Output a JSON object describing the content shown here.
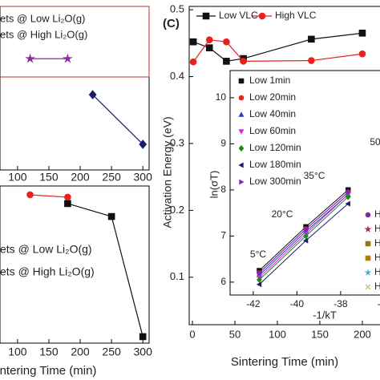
{
  "chart_data": [
    {
      "type": "line",
      "xlim": [
        72,
        310
      ],
      "xticks": [
        100,
        150,
        200,
        250,
        300
      ],
      "ylim": [
        0,
        1
      ],
      "legend_color": "#8b1a1a",
      "series": [
        {
          "name": "ets @  Low Li₂O(g)",
          "color": "#1c1c6e",
          "marker": "diamond",
          "x": [
            220,
            300
          ],
          "values": [
            0.46,
            0.157
          ]
        },
        {
          "name": "ets @  High Li₂O(g)",
          "color": "#8e2a9e",
          "marker": "star",
          "x": [
            120,
            180
          ],
          "values": [
            0.68,
            0.68
          ]
        }
      ]
    },
    {
      "type": "line",
      "xlim": [
        72,
        310
      ],
      "xticks": [
        100,
        150,
        200,
        250,
        300
      ],
      "ylim": [
        0,
        1
      ],
      "x_label": "ntering Time (min)",
      "legend_color": "#222222",
      "series": [
        {
          "name": "ets @  Low Li₂O(g)",
          "color": "#111111",
          "marker": "square",
          "x": [
            180,
            250,
            300
          ],
          "values": [
            0.888,
            0.806,
            0.041
          ]
        },
        {
          "name": "ets @  High Li₂O(g)",
          "color": "#e8201e",
          "marker": "circle",
          "x": [
            120,
            180
          ],
          "values": [
            0.944,
            0.929
          ]
        }
      ]
    },
    {
      "type": "line",
      "panel_label": "(C)",
      "x_label": "Sintering Time (min)",
      "y_label": "Activation Energy (eV)",
      "xlim": [
        -3.8,
        220.8
      ],
      "xticks": [
        0,
        50,
        100,
        150,
        200
      ],
      "ylim": [
        0.029,
        0.505
      ],
      "yticks": [
        0.1,
        0.2,
        0.3,
        0.4,
        0.5
      ],
      "legend_color": "#222222",
      "series": [
        {
          "name": "Low VLC",
          "color": "#111111",
          "marker": "square",
          "x": [
            1,
            20,
            40,
            60,
            140,
            200
          ],
          "values": [
            0.452,
            0.443,
            0.423,
            0.427,
            0.456,
            0.465
          ]
        },
        {
          "name": "High VLC",
          "color": "#e8201e",
          "marker": "circle",
          "x": [
            1,
            20,
            40,
            60,
            140,
            200
          ],
          "values": [
            0.422,
            0.455,
            0.452,
            0.423,
            0.424,
            0.434
          ]
        }
      ]
    },
    {
      "type": "line",
      "x_label": "-1/kT",
      "y_label": "ln(σT)",
      "xlim": [
        -43.06,
        -36.2
      ],
      "xticks": [
        -42,
        -40,
        -38,
        -36
      ],
      "ylim": [
        5.72,
        10.59
      ],
      "yticks": [
        6,
        7,
        8,
        9,
        10
      ],
      "legend_color": "#222222",
      "annotations": [
        "5°C",
        "20°C",
        "35°C",
        "50"
      ],
      "series": [
        {
          "name": "Low 1min",
          "color": "#111111",
          "marker": "square",
          "x": [
            -41.72,
            -39.59,
            -37.66
          ],
          "values": [
            6.25,
            7.2,
            8.0
          ]
        },
        {
          "name": "Low 20min",
          "color": "#e8201e",
          "marker": "circle",
          "x": [
            -41.72,
            -39.59,
            -37.66
          ],
          "values": [
            6.2,
            7.15,
            7.95
          ]
        },
        {
          "name": "Low 40min",
          "color": "#1f3fd0",
          "marker": "triangle-up",
          "x": [
            -41.72,
            -39.59,
            -37.66
          ],
          "values": [
            6.15,
            7.1,
            7.9
          ]
        },
        {
          "name": "Low  60min",
          "color": "#e020e0",
          "marker": "triangle-down",
          "x": [
            -41.72,
            -39.59,
            -37.66
          ],
          "values": [
            6.1,
            7.05,
            7.9
          ]
        },
        {
          "name": "Low 120min",
          "color": "#1a8a1a",
          "marker": "diamond",
          "x": [
            -41.72,
            -39.59,
            -37.66
          ],
          "values": [
            6.05,
            7.0,
            7.85
          ]
        },
        {
          "name": "Low 180min",
          "color": "#1c1c6e",
          "marker": "triangle-left",
          "x": [
            -41.72,
            -39.59,
            -37.66
          ],
          "values": [
            5.95,
            6.9,
            7.7
          ]
        },
        {
          "name": "Low 300min",
          "color": "#7b2ac0",
          "marker": "triangle-right",
          "x": [
            -41.72,
            -39.59,
            -37.66
          ],
          "values": [
            6.2,
            7.15,
            7.95
          ]
        }
      ],
      "extra_legend": [
        {
          "label": "H",
          "color": "#7b2a9e",
          "marker": "circle"
        },
        {
          "label": "H",
          "color": "#b02040",
          "marker": "star"
        },
        {
          "label": "H",
          "color": "#8a7a10",
          "marker": "square"
        },
        {
          "label": "H",
          "color": "#b07a10",
          "marker": "square"
        },
        {
          "label": "H",
          "color": "#40b0e0",
          "marker": "star"
        },
        {
          "label": "H",
          "color": "#d0c080",
          "marker": "cross"
        }
      ]
    }
  ]
}
